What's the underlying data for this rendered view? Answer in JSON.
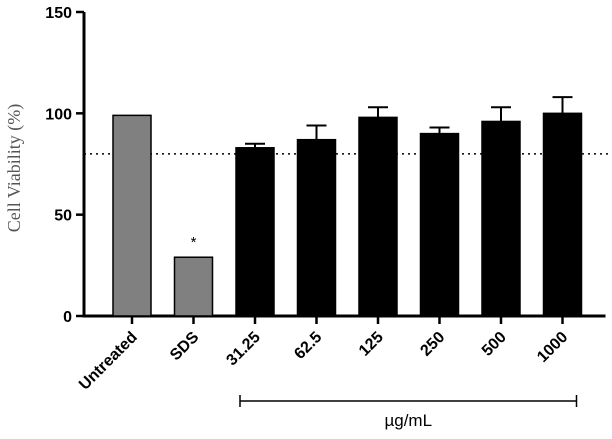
{
  "chart_data": {
    "type": "bar",
    "title": "",
    "xlabel": "",
    "ylabel": "Cell Viability (%)",
    "ylim": [
      0,
      150
    ],
    "yticks": [
      0,
      50,
      100,
      150
    ],
    "categories": [
      "Untreated",
      "SDS",
      "31.25",
      "62.5",
      "125",
      "250",
      "500",
      "1000"
    ],
    "values": [
      99,
      29,
      83,
      87,
      98,
      90,
      96,
      100
    ],
    "errors": [
      0,
      0,
      2,
      7,
      5,
      3,
      7,
      8
    ],
    "bar_colors": [
      "#808080",
      "#808080",
      "#000000",
      "#000000",
      "#000000",
      "#000000",
      "#000000",
      "#000000"
    ],
    "reference_line": 80,
    "annotation": {
      "category": "SDS",
      "text": "*"
    },
    "group_bracket": {
      "from": "31.25",
      "to": "1000",
      "label": "µg/mL"
    },
    "grid": false
  }
}
